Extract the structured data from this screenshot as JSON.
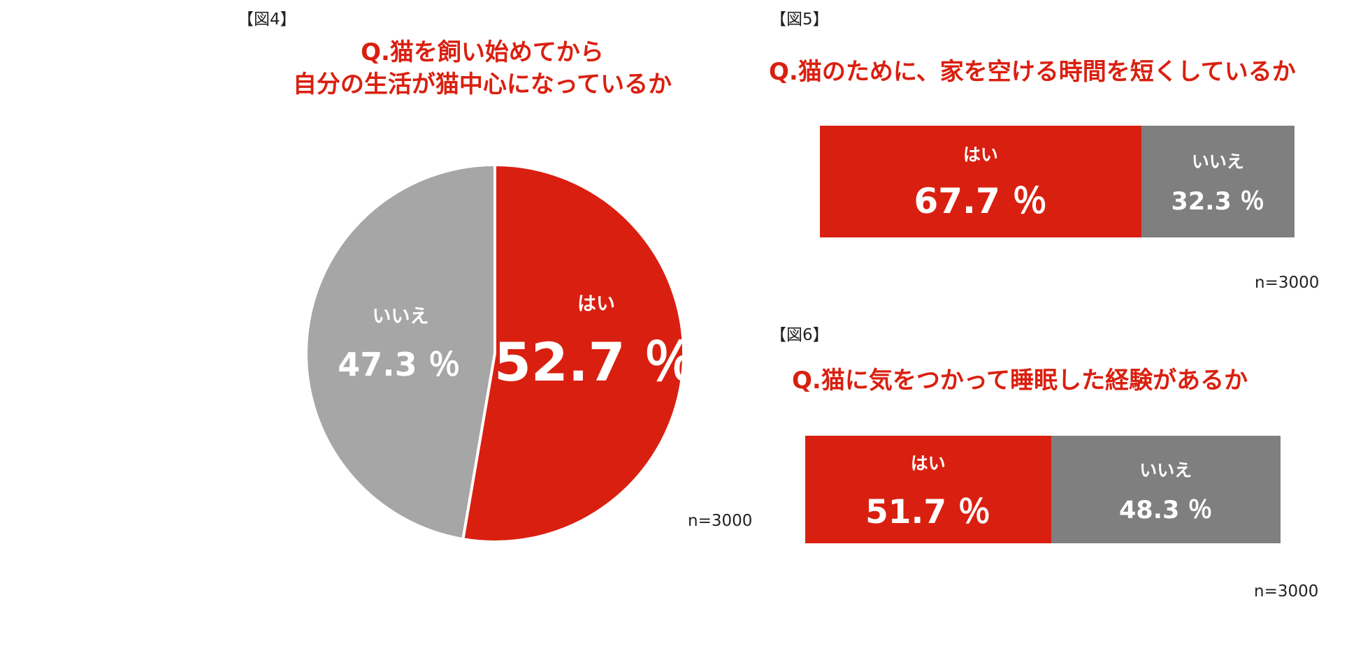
{
  "colors": {
    "yes": "#d92010",
    "no_pie": "#a6a6a6",
    "no_bar": "#7f7f7f",
    "title": "#d92010"
  },
  "chart_data": [
    {
      "id": "fig4",
      "type": "pie",
      "figure_label": "【図4】",
      "title_lines": [
        "Q.猫を飼い始めてから",
        "自分の生活が猫中心になっているか"
      ],
      "categories": [
        "はい",
        "いいえ"
      ],
      "values": [
        52.7,
        47.3
      ],
      "value_labels": [
        "52.7 ％",
        "47.3 ％"
      ],
      "n_label": "n=3000"
    },
    {
      "id": "fig5",
      "type": "bar",
      "orientation": "horizontal-stacked-100",
      "figure_label": "【図5】",
      "title": "Q.猫のために、家を空ける時間を短くしているか",
      "categories": [
        "はい",
        "いいえ"
      ],
      "values": [
        67.7,
        32.3
      ],
      "value_labels": [
        "67.7 ％",
        "32.3 ％"
      ],
      "n_label": "n=3000"
    },
    {
      "id": "fig6",
      "type": "bar",
      "orientation": "horizontal-stacked-100",
      "figure_label": "【図6】",
      "title": "Q.猫に気をつかって睡眠した経験があるか",
      "categories": [
        "はい",
        "いいえ"
      ],
      "values": [
        51.7,
        48.3
      ],
      "value_labels": [
        "51.7 ％",
        "48.3 ％"
      ],
      "n_label": "n=3000"
    }
  ]
}
